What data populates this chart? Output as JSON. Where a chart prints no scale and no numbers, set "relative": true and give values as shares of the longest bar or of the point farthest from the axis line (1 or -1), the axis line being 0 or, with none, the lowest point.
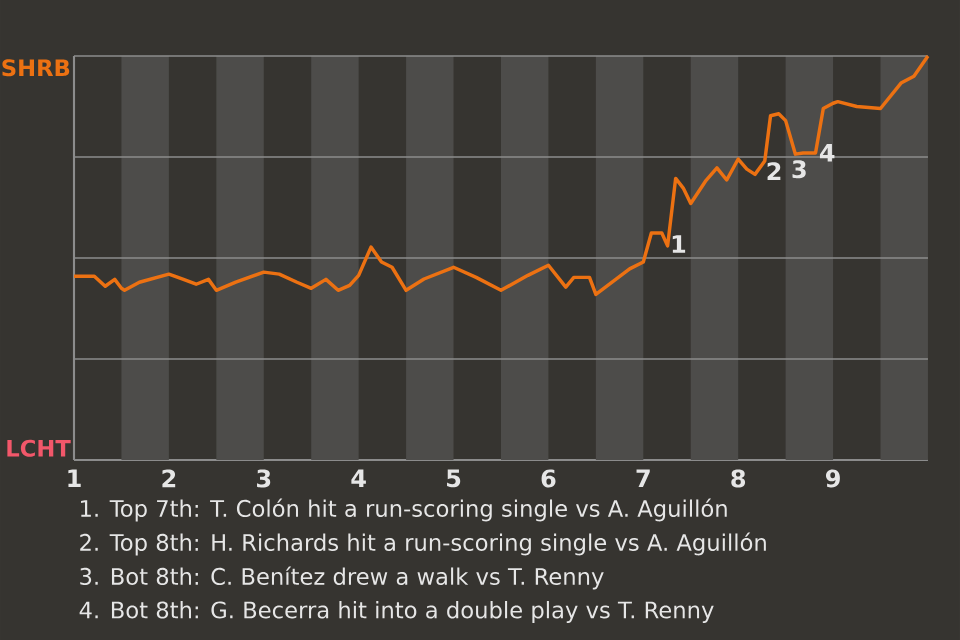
{
  "chart_data": {
    "type": "line",
    "relative": true,
    "xlim": [
      1,
      10
    ],
    "xticks": [
      1,
      2,
      3,
      4,
      5,
      6,
      7,
      8,
      9
    ],
    "marker": "none",
    "line_style": "solid",
    "ref_lines": [
      {
        "axis": "y",
        "value": 0.25,
        "color": "#8c8c8c"
      },
      {
        "axis": "y",
        "value": 0.5,
        "color": "#8c8c8c"
      },
      {
        "axis": "y",
        "value": 0.75,
        "color": "#8c8c8c"
      },
      {
        "axis": "y",
        "value": 1,
        "color": "#8c8c8c"
      }
    ],
    "bands": [
      {
        "axis": "x",
        "from": 1.5,
        "to": 2,
        "color": "#4d4c4a"
      },
      {
        "axis": "x",
        "from": 2.5,
        "to": 3,
        "color": "#4d4c4a"
      },
      {
        "axis": "x",
        "from": 3.5,
        "to": 4,
        "color": "#4d4c4a"
      },
      {
        "axis": "x",
        "from": 4.5,
        "to": 5,
        "color": "#4d4c4a"
      },
      {
        "axis": "x",
        "from": 5.5,
        "to": 6,
        "color": "#4d4c4a"
      },
      {
        "axis": "x",
        "from": 6.5,
        "to": 7,
        "color": "#4d4c4a"
      },
      {
        "axis": "x",
        "from": 7.5,
        "to": 8,
        "color": "#4d4c4a"
      },
      {
        "axis": "x",
        "from": 8.5,
        "to": 9,
        "color": "#4d4c4a"
      },
      {
        "axis": "x",
        "from": 9.5,
        "to": 10,
        "color": "#4d4c4a"
      }
    ],
    "series": [
      {
        "color": "#ec7112",
        "x": [
          1,
          1.214,
          1.329,
          1.429,
          1.5,
          1.533,
          1.689,
          2,
          2.139,
          2.287,
          2.417,
          2.5,
          2.705,
          3,
          3.163,
          3.35,
          3.5,
          3.655,
          3.784,
          3.905,
          4,
          4.13,
          4.241,
          4.352,
          4.5,
          4.689,
          5,
          5.238,
          5.5,
          5.784,
          6,
          6.183,
          6.268,
          6.433,
          6.5,
          6.856,
          7,
          7.085,
          7.195,
          7.256,
          7.341,
          7.421,
          7.5,
          7.655,
          7.776,
          7.879,
          8,
          8.091,
          8.177,
          8.28,
          8.341,
          8.427,
          8.5,
          8.603,
          8.685,
          8.815,
          8.897,
          9,
          9.05,
          9.25,
          9.5,
          9.716,
          9.852,
          10
        ],
        "values": [
          0.455,
          0.455,
          0.43,
          0.447,
          0.425,
          0.42,
          0.44,
          0.46,
          0.448,
          0.435,
          0.447,
          0.42,
          0.44,
          0.465,
          0.46,
          0.44,
          0.425,
          0.447,
          0.42,
          0.432,
          0.457,
          0.527,
          0.49,
          0.477,
          0.42,
          0.448,
          0.477,
          0.452,
          0.42,
          0.457,
          0.482,
          0.428,
          0.452,
          0.452,
          0.41,
          0.473,
          0.49,
          0.562,
          0.562,
          0.53,
          0.697,
          0.673,
          0.635,
          0.69,
          0.723,
          0.693,
          0.745,
          0.72,
          0.707,
          0.74,
          0.852,
          0.857,
          0.84,
          0.757,
          0.76,
          0.76,
          0.87,
          0.883,
          0.887,
          0.875,
          0.87,
          0.933,
          0.95,
          1.0
        ]
      }
    ],
    "annotations": [
      "SHRB",
      "LCHT",
      {
        "text": "1",
        "x": 7.37,
        "y": 0.574
      },
      {
        "text": "2",
        "x": 8.378,
        "y": 0.755
      },
      {
        "text": "3",
        "x": 8.644,
        "y": 0.76
      },
      {
        "text": "4",
        "x": 8.938,
        "y": 0.8
      },
      "1. Top 7th: T. Colón hit a run-scoring single vs A. Aguillón",
      "2. Top 8th: H. Richards hit a run-scoring single vs A. Aguillón",
      "3. Bot 8th: C. Benítez drew a walk vs T. Renny",
      "4. Bot 8th: G. Becerra hit into a double play vs T. Renny"
    ]
  }
}
